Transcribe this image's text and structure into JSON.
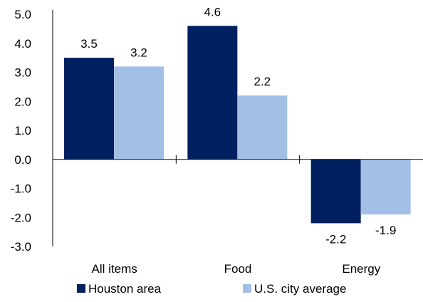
{
  "chart_data": {
    "type": "bar",
    "categories": [
      "All items",
      "Food",
      "Energy"
    ],
    "series": [
      {
        "name": "Houston area",
        "values": [
          3.5,
          4.6,
          -2.2
        ],
        "color": "#002060"
      },
      {
        "name": "U.S. city average",
        "values": [
          3.2,
          2.2,
          -1.9
        ],
        "color": "#A4BFE6"
      }
    ],
    "ylim": [
      -3.0,
      5.0
    ],
    "yticks": [
      "5.0",
      "4.0",
      "3.0",
      "2.0",
      "1.0",
      "0.0",
      "-1.0",
      "-2.0",
      "-3.0"
    ],
    "data_labels": [
      [
        "3.5",
        "4.6",
        "-2.2"
      ],
      [
        "3.2",
        "2.2",
        "-1.9"
      ]
    ],
    "title": "",
    "xlabel": "",
    "ylabel": "",
    "grid": false,
    "legend_position": "bottom"
  }
}
